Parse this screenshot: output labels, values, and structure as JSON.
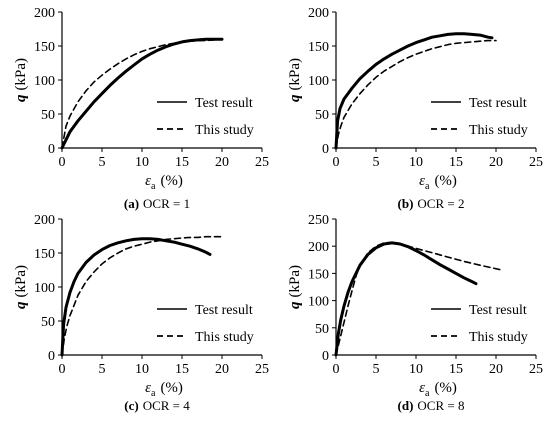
{
  "chart_data": [
    {
      "type": "line",
      "caption": {
        "letter": "(a)",
        "text": "OCR = 1"
      },
      "ylabel": {
        "sym": "q",
        "unit": "(kPa)"
      },
      "xlabel": {
        "sym": "ε",
        "sub": "a",
        "unit": "(%)"
      },
      "xlim": [
        0,
        25
      ],
      "ylim": [
        0,
        200
      ],
      "xticks": [
        0,
        5,
        10,
        15,
        20,
        25
      ],
      "yticks": [
        0,
        50,
        100,
        150,
        200
      ],
      "legend_position": "bottom-right",
      "series": [
        {
          "name": "Test result",
          "style": "solid",
          "width": 3,
          "x": [
            0,
            1,
            2,
            3,
            4,
            5,
            6,
            7,
            8,
            9,
            10,
            11,
            12,
            13,
            14,
            15,
            16,
            17,
            18,
            19,
            20
          ],
          "y": [
            0,
            24,
            40,
            54,
            68,
            80,
            92,
            103,
            113,
            122,
            131,
            138,
            144,
            149,
            153,
            156,
            158,
            159,
            160,
            160,
            160
          ]
        },
        {
          "name": "This study",
          "style": "dashed",
          "width": 1.6,
          "x": [
            0,
            0.5,
            1,
            2,
            3,
            4,
            5,
            6,
            7,
            8,
            9,
            10,
            11,
            12,
            13,
            14,
            15,
            16,
            17,
            18,
            19,
            20
          ],
          "y": [
            0,
            32,
            47,
            68,
            84,
            97,
            107,
            116,
            124,
            131,
            137,
            142,
            146,
            149,
            152,
            154,
            156,
            157,
            158,
            158,
            159,
            160
          ]
        }
      ]
    },
    {
      "type": "line",
      "caption": {
        "letter": "(b)",
        "text": "OCR = 2"
      },
      "ylabel": {
        "sym": "q",
        "unit": "(kPa)"
      },
      "xlabel": {
        "sym": "ε",
        "sub": "a",
        "unit": "(%)"
      },
      "xlim": [
        0,
        25
      ],
      "ylim": [
        0,
        200
      ],
      "xticks": [
        0,
        5,
        10,
        15,
        20,
        25
      ],
      "yticks": [
        0,
        50,
        100,
        150,
        200
      ],
      "legend_position": "bottom-right",
      "series": [
        {
          "name": "Test result",
          "style": "solid",
          "width": 3,
          "x": [
            0,
            0.2,
            0.5,
            1,
            1.5,
            2,
            3,
            4,
            5,
            6,
            7,
            8,
            9,
            10,
            11,
            12,
            13,
            14,
            15,
            16,
            17,
            18,
            19,
            19.5
          ],
          "y": [
            0,
            40,
            58,
            72,
            80,
            88,
            102,
            113,
            123,
            131,
            138,
            144,
            150,
            155,
            159,
            163,
            165,
            167,
            168,
            168,
            167,
            166,
            163,
            162
          ]
        },
        {
          "name": "This study",
          "style": "dashed",
          "width": 1.6,
          "x": [
            0,
            0.3,
            0.6,
            1,
            2,
            3,
            4,
            5,
            6,
            7,
            8,
            9,
            10,
            11,
            12,
            13,
            14,
            15,
            16,
            17,
            18,
            19,
            20
          ],
          "y": [
            0,
            20,
            32,
            45,
            65,
            80,
            93,
            104,
            113,
            120,
            127,
            133,
            138,
            142,
            146,
            149,
            152,
            154,
            155,
            156,
            157,
            158,
            158
          ]
        }
      ]
    },
    {
      "type": "line",
      "caption": {
        "letter": "(c)",
        "text": "OCR = 4"
      },
      "ylabel": {
        "sym": "q",
        "unit": "(kPa)"
      },
      "xlabel": {
        "sym": "ε",
        "sub": "a",
        "unit": "(%)"
      },
      "xlim": [
        0,
        25
      ],
      "ylim": [
        0,
        200
      ],
      "xticks": [
        0,
        5,
        10,
        15,
        20,
        25
      ],
      "yticks": [
        0,
        50,
        100,
        150,
        200
      ],
      "legend_position": "bottom-right",
      "series": [
        {
          "name": "Test result",
          "style": "solid",
          "width": 3,
          "x": [
            0,
            0.2,
            0.5,
            1,
            1.5,
            2,
            3,
            4,
            5,
            6,
            7,
            8,
            9,
            10,
            11,
            12,
            13,
            14,
            15,
            16,
            17,
            18,
            18.5
          ],
          "y": [
            0,
            45,
            70,
            92,
            108,
            120,
            136,
            147,
            155,
            161,
            165,
            168,
            170,
            171,
            171,
            170,
            168,
            166,
            163,
            160,
            156,
            151,
            148
          ]
        },
        {
          "name": "This study",
          "style": "dashed",
          "width": 1.6,
          "x": [
            0,
            0.3,
            0.6,
            1,
            2,
            3,
            4,
            5,
            6,
            7,
            8,
            9,
            10,
            11,
            12,
            13,
            14,
            15,
            16,
            17,
            18,
            19,
            20
          ],
          "y": [
            0,
            25,
            42,
            58,
            88,
            108,
            122,
            134,
            143,
            150,
            156,
            160,
            163,
            166,
            168,
            170,
            171,
            172,
            173,
            173,
            174,
            174,
            174
          ]
        }
      ]
    },
    {
      "type": "line",
      "caption": {
        "letter": "(d)",
        "text": "OCR = 8"
      },
      "ylabel": {
        "sym": "q",
        "unit": "(kPa)"
      },
      "xlabel": {
        "sym": "ε",
        "sub": "a",
        "unit": "(%)"
      },
      "xlim": [
        0,
        25
      ],
      "ylim": [
        0,
        250
      ],
      "xticks": [
        0,
        5,
        10,
        15,
        20,
        25
      ],
      "yticks": [
        0,
        50,
        100,
        150,
        200,
        250
      ],
      "legend_position": "bottom-right",
      "series": [
        {
          "name": "Test result",
          "style": "solid",
          "width": 3,
          "x": [
            0,
            0.3,
            0.6,
            1,
            1.5,
            2,
            3,
            4,
            5,
            6,
            7,
            8,
            9,
            10,
            11,
            12,
            13,
            14,
            15,
            16,
            17,
            17.5
          ],
          "y": [
            0,
            40,
            65,
            90,
            115,
            135,
            165,
            185,
            197,
            204,
            206,
            204,
            199,
            192,
            184,
            175,
            166,
            158,
            150,
            142,
            135,
            131
          ]
        },
        {
          "name": "This study",
          "style": "dashed",
          "width": 1.6,
          "x": [
            0,
            0.5,
            1,
            1.5,
            2,
            2.5,
            3,
            4,
            5,
            6,
            7,
            8,
            10,
            12,
            14,
            16,
            18,
            20.5
          ],
          "y": [
            0,
            30,
            60,
            90,
            118,
            145,
            165,
            188,
            200,
            206,
            207,
            205,
            196,
            188,
            180,
            172,
            165,
            157
          ]
        }
      ]
    }
  ]
}
